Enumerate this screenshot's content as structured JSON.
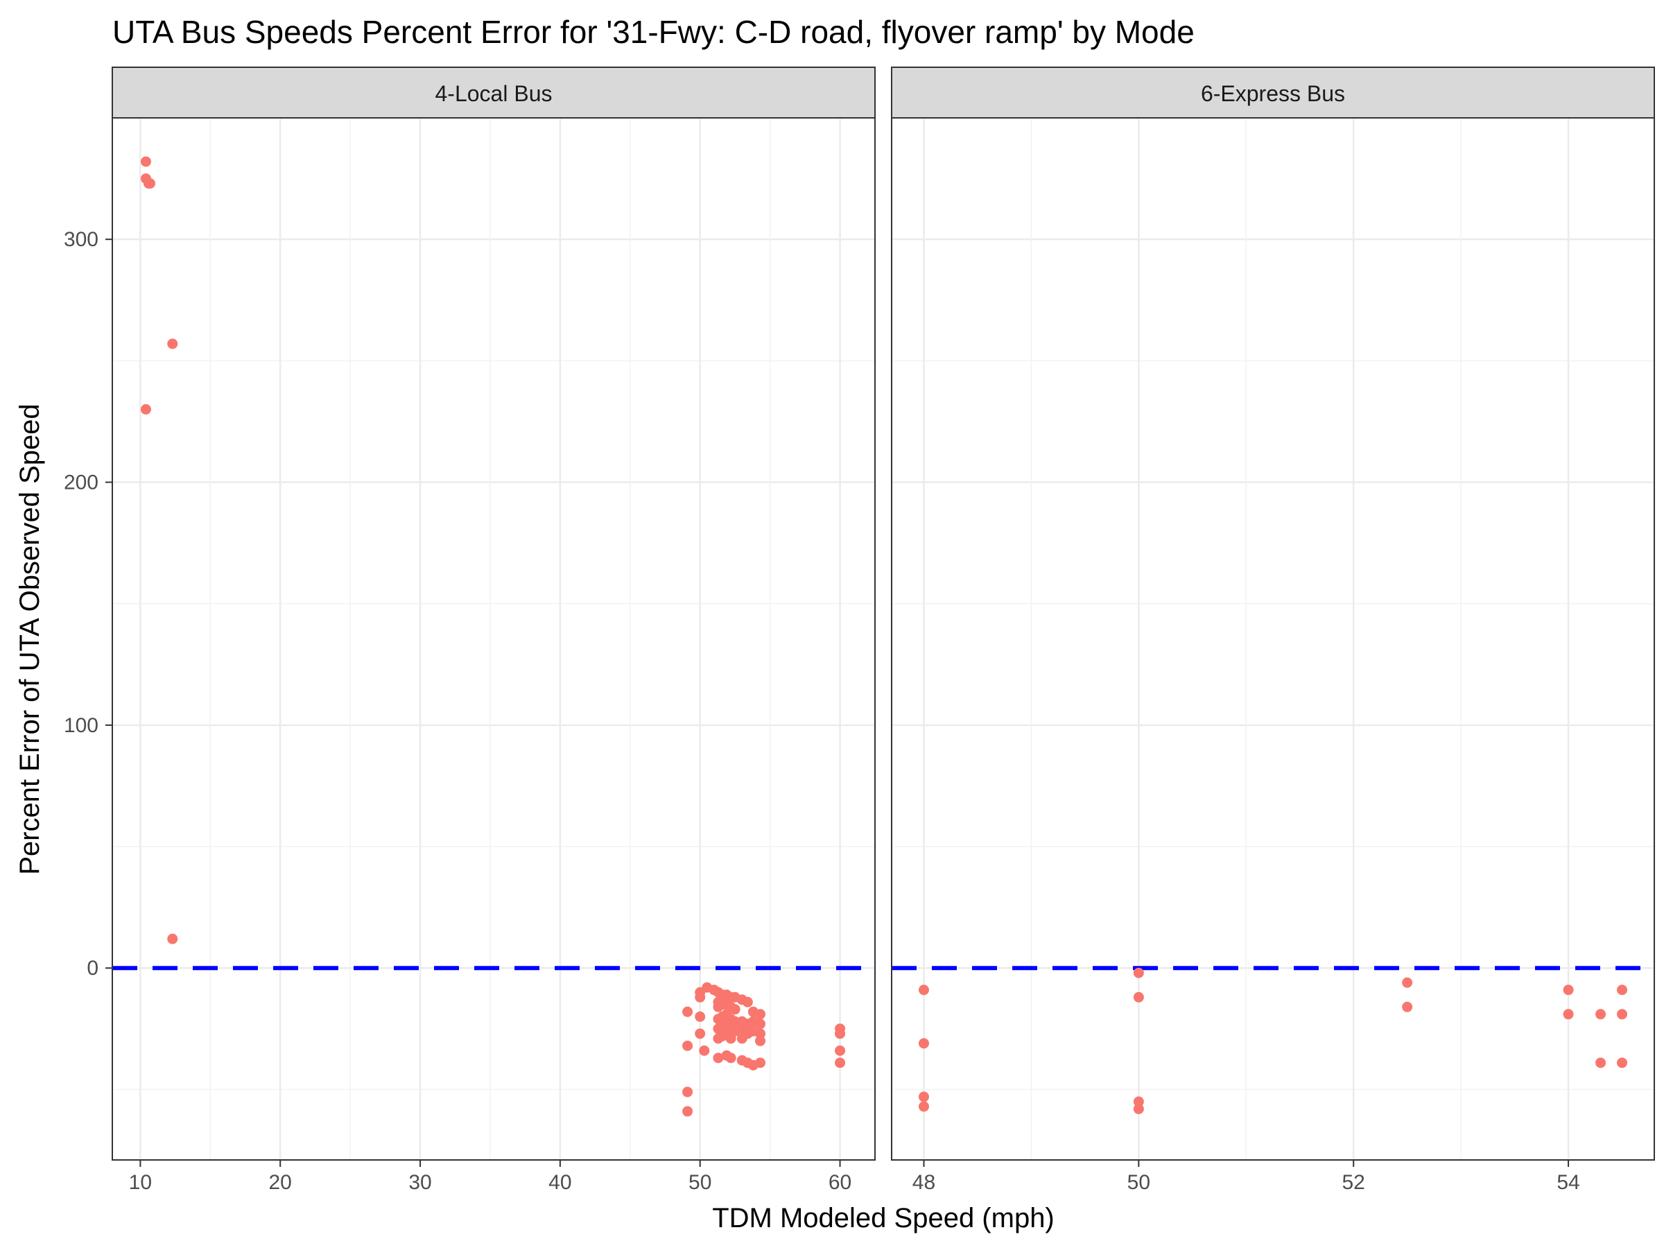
{
  "chart_data": {
    "type": "scatter",
    "title": "UTA Bus Speeds Percent Error for '31-Fwy: C-D road, flyover ramp' by Mode",
    "xlabel": "TDM Modeled Speed (mph)",
    "ylabel": "Percent Error of UTA Observed Speed",
    "ylim": [
      -79,
      350
    ],
    "y_ticks": [
      0,
      100,
      200,
      300
    ],
    "reference_line": {
      "y": 0,
      "style": "dashed",
      "color": "#0000ff"
    },
    "point_color": "#f8766d",
    "grid": true,
    "panels": [
      {
        "name": "4-Local Bus",
        "xlim": [
          8,
          62.5
        ],
        "x_ticks": [
          10,
          20,
          30,
          40,
          50,
          60
        ],
        "points": [
          [
            10.4,
            332
          ],
          [
            10.4,
            325
          ],
          [
            10.6,
            323
          ],
          [
            10.7,
            323
          ],
          [
            12.3,
            257
          ],
          [
            10.4,
            230
          ],
          [
            12.3,
            12
          ],
          [
            49.1,
            -18
          ],
          [
            49.1,
            -32
          ],
          [
            49.1,
            -51
          ],
          [
            49.1,
            -59
          ],
          [
            50.0,
            -10
          ],
          [
            50.0,
            -12
          ],
          [
            50.0,
            -20
          ],
          [
            50.0,
            -27
          ],
          [
            50.3,
            -34
          ],
          [
            50.5,
            -8
          ],
          [
            51.0,
            -9
          ],
          [
            51.3,
            -10
          ],
          [
            51.3,
            -14
          ],
          [
            51.3,
            -16
          ],
          [
            51.3,
            -21
          ],
          [
            51.3,
            -25
          ],
          [
            51.3,
            -29
          ],
          [
            51.3,
            -37
          ],
          [
            51.6,
            -11
          ],
          [
            51.6,
            -15
          ],
          [
            51.6,
            -20
          ],
          [
            51.6,
            -24
          ],
          [
            51.6,
            -28
          ],
          [
            51.9,
            -11
          ],
          [
            51.9,
            -15
          ],
          [
            51.9,
            -19
          ],
          [
            51.9,
            -23
          ],
          [
            51.9,
            -27
          ],
          [
            51.9,
            -36
          ],
          [
            52.2,
            -12
          ],
          [
            52.2,
            -16
          ],
          [
            52.2,
            -21
          ],
          [
            52.2,
            -25
          ],
          [
            52.2,
            -29
          ],
          [
            52.2,
            -37
          ],
          [
            52.5,
            -12
          ],
          [
            52.5,
            -17
          ],
          [
            52.5,
            -22
          ],
          [
            52.5,
            -26
          ],
          [
            53.0,
            -13
          ],
          [
            53.0,
            -22
          ],
          [
            53.0,
            -25
          ],
          [
            53.0,
            -29
          ],
          [
            53.0,
            -38
          ],
          [
            53.4,
            -14
          ],
          [
            53.4,
            -23
          ],
          [
            53.4,
            -27
          ],
          [
            53.4,
            -39
          ],
          [
            53.8,
            -18
          ],
          [
            53.8,
            -22
          ],
          [
            53.8,
            -26
          ],
          [
            53.8,
            -40
          ],
          [
            54.3,
            -19
          ],
          [
            54.3,
            -23
          ],
          [
            54.3,
            -27
          ],
          [
            54.3,
            -30
          ],
          [
            54.3,
            -39
          ],
          [
            60.0,
            -25
          ],
          [
            60.0,
            -27
          ],
          [
            60.0,
            -34
          ],
          [
            60.0,
            -39
          ]
        ]
      },
      {
        "name": "6-Express Bus",
        "xlim": [
          47.7,
          54.8
        ],
        "x_ticks": [
          48,
          50,
          52,
          54
        ],
        "points": [
          [
            48.0,
            -9
          ],
          [
            48.0,
            -31
          ],
          [
            48.0,
            -53
          ],
          [
            48.0,
            -57
          ],
          [
            50.0,
            -2
          ],
          [
            50.0,
            -12
          ],
          [
            50.0,
            -55
          ],
          [
            50.0,
            -58
          ],
          [
            52.5,
            -6
          ],
          [
            52.5,
            -16
          ],
          [
            54.0,
            -9
          ],
          [
            54.0,
            -19
          ],
          [
            54.3,
            -19
          ],
          [
            54.3,
            -39
          ],
          [
            54.5,
            -9
          ],
          [
            54.5,
            -19
          ],
          [
            54.5,
            -39
          ]
        ]
      }
    ]
  }
}
